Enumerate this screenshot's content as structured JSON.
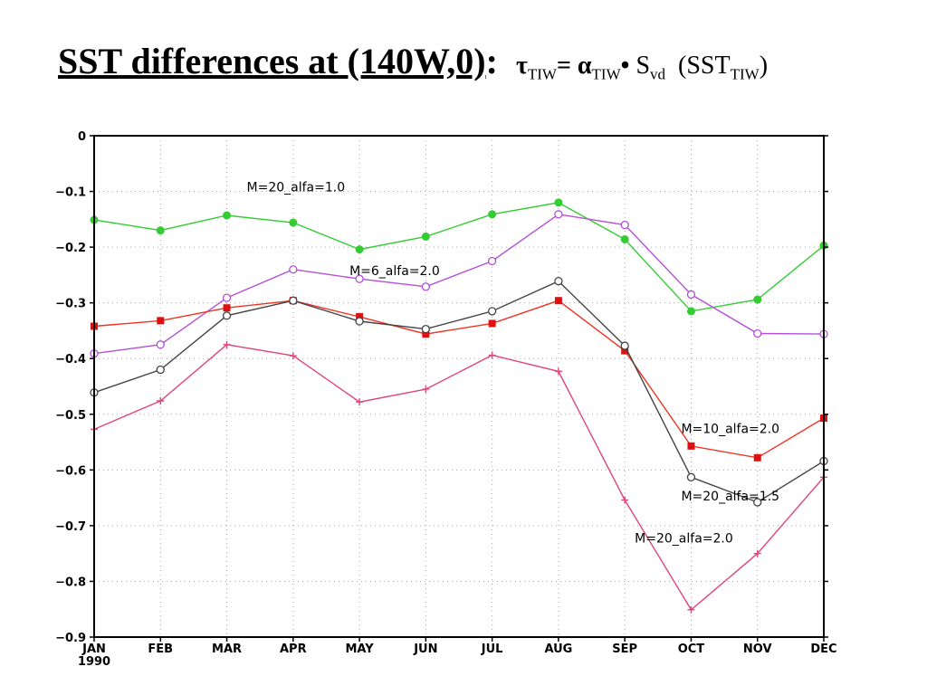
{
  "title": {
    "main": "SST differences at (140W,0)",
    "colon": ":",
    "tau": "τ",
    "tau_sub": "TIW",
    "eq": "= ",
    "alpha": "α",
    "alpha_sub": "TIW",
    "dot": "•",
    "s": "S",
    "s_sub": "vd",
    "sst_open": "(SST",
    "sst_sub": "TIW",
    "sst_close": ")"
  },
  "chart_data": {
    "type": "line",
    "categories": [
      "JAN",
      "FEB",
      "MAR",
      "APR",
      "MAY",
      "JUN",
      "JUL",
      "AUG",
      "SEP",
      "OCT",
      "NOV",
      "DEC"
    ],
    "year_label": "1990",
    "ylim": [
      -0.9,
      0
    ],
    "yticks": [
      0,
      -0.1,
      -0.2,
      -0.3,
      -0.4,
      -0.5,
      -0.6,
      -0.7,
      -0.8,
      -0.9
    ],
    "ytick_labels": [
      "0",
      "-0.1",
      "-0.2",
      "-0.3",
      "-0.4",
      "-0.5",
      "-0.6",
      "-0.7",
      "-0.8",
      "-0.9"
    ],
    "grid": true,
    "series": [
      {
        "label": "M=20_alfa=1.0",
        "color": "#33cc33",
        "marker": "filled-circle",
        "values": [
          -0.151,
          -0.17,
          -0.143,
          -0.156,
          -0.204,
          -0.181,
          -0.141,
          -0.12,
          -0.186,
          -0.315,
          -0.294,
          -0.197
        ]
      },
      {
        "label": "M=6_alfa=2.0",
        "color": "#b44fd9",
        "marker": "open-circle",
        "values": [
          -0.391,
          -0.375,
          -0.291,
          -0.24,
          -0.257,
          -0.271,
          -0.225,
          -0.141,
          -0.16,
          -0.285,
          -0.355,
          -0.356
        ]
      },
      {
        "label": "M=10_alfa=2.0",
        "color": "#ee3322",
        "marker": "filled-square",
        "values": [
          -0.342,
          -0.332,
          -0.309,
          -0.296,
          -0.325,
          -0.356,
          -0.337,
          -0.296,
          -0.386,
          -0.557,
          -0.578,
          -0.507
        ]
      },
      {
        "label": "M=20_alfa=1.5",
        "color": "#444444",
        "marker": "open-circle",
        "values": [
          -0.461,
          -0.42,
          -0.323,
          -0.296,
          -0.333,
          -0.347,
          -0.315,
          -0.261,
          -0.377,
          -0.613,
          -0.658,
          -0.584
        ]
      },
      {
        "label": "M=20_alfa=2.0",
        "color": "#e0457b",
        "marker": "plus",
        "values": [
          -0.527,
          -0.476,
          -0.375,
          -0.395,
          -0.478,
          -0.455,
          -0.394,
          -0.423,
          -0.654,
          -0.851,
          -0.75,
          -0.613
        ]
      }
    ],
    "annotations": [
      {
        "text": "M=20_alfa=1.0",
        "series": 0
      },
      {
        "text": "M=6_alfa=2.0",
        "series": 1
      },
      {
        "text": "M=10_alfa=2.0",
        "series": 2
      },
      {
        "text": "M=20_alfa=1.5",
        "series": 3
      },
      {
        "text": "M=20_alfa=2.0",
        "series": 4
      }
    ]
  }
}
